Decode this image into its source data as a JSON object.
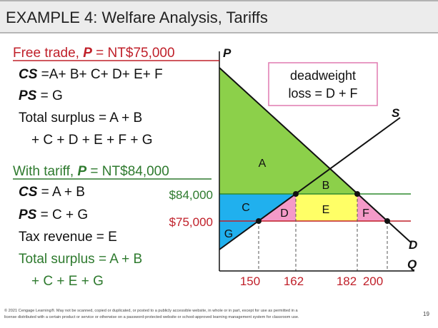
{
  "title": "EXAMPLE 4: Welfare Analysis, Tariffs",
  "free_trade": {
    "heading": "Free trade, ",
    "var": "P",
    "price": " = NT$75,000",
    "cs_var": "CS",
    "cs": " =A+ B+ C+ D+ E+ F",
    "ps_var": "PS",
    "ps": " = G",
    "total_1": "Total surplus = A + B",
    "total_2": "+ C + D + E + F + G"
  },
  "tariff": {
    "heading": "With tariff, ",
    "var": "P",
    "price": " = NT$84,000",
    "cs_var": "CS",
    "cs": " = A + B",
    "ps_var": "PS",
    "ps": " = C + G",
    "tax": "Tax revenue = E",
    "total_1": "Total surplus = A + B",
    "total_2": "+ C + E + G"
  },
  "graph": {
    "y_axis": "P",
    "x_axis": "Q",
    "supply": "S",
    "demand": "D",
    "price_high": "$84,000",
    "price_low": "$75,000",
    "quantities": [
      "150",
      "162",
      "182",
      "200"
    ],
    "regions": {
      "a": "A",
      "b": "B",
      "c": "C",
      "d": "D",
      "e": "E",
      "f": "F",
      "g": "G"
    },
    "deadweight_1": "deadweight",
    "deadweight_2": "loss = D + F"
  },
  "footer": {
    "line_1": "© 2021 Cengage Learning®. May not be scanned, copied or duplicated, or posted to a publicly accessible website, in whole or in part, except for use as permitted in a",
    "line_2": "license distributed with a certain product or service or otherwise on a password-protected website or school-approved learning management system for classroom use.",
    "page": "19"
  }
}
